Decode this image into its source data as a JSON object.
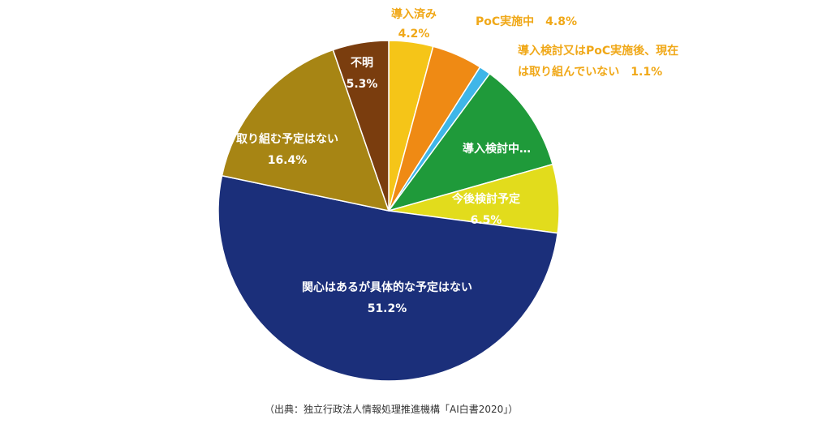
{
  "chart_data": {
    "type": "pie",
    "title": "",
    "start_angle_deg": 0,
    "direction": "clockwise",
    "slices": [
      {
        "name": "導入済み",
        "value": 4.2,
        "label": "4.2%",
        "color": "#f5c518",
        "label_position": "outside"
      },
      {
        "name": "PoC実施中",
        "value": 4.8,
        "label": "4.8%",
        "color": "#ef8a14",
        "label_position": "outside"
      },
      {
        "name": "導入検討又はPoC実施後、現在は取り組んでいない",
        "value": 1.1,
        "label": "1.1%",
        "color": "#3fb6e8",
        "label_position": "outside"
      },
      {
        "name": "導入検討中…",
        "value": 10.5,
        "label": "",
        "color": "#1f9a3a",
        "label_position": "inside"
      },
      {
        "name": "今後検討予定",
        "value": 6.5,
        "label": "6.5%",
        "color": "#e2dc1c",
        "label_position": "inside"
      },
      {
        "name": "関心はあるが具体的な予定はない",
        "value": 51.2,
        "label": "51.2%",
        "color": "#1b2f7a",
        "label_position": "inside"
      },
      {
        "name": "取り組む予定はない",
        "value": 16.4,
        "label": "16.4%",
        "color": "#a78514",
        "label_position": "inside"
      },
      {
        "name": "不明",
        "value": 5.3,
        "label": "5.3%",
        "color": "#7a3d0e",
        "label_position": "inside"
      }
    ]
  },
  "labels": {
    "s0_line1": "導入済み",
    "s0_line2": "4.2%",
    "s1_line1": "PoC実施中　4.8%",
    "s2_line1": "導入検討又はPoC実施後、現在",
    "s2_line2": "は取り組んでいない　1.1%",
    "s3_line1": "導入検討中…",
    "s4_line1": "今後検討予定",
    "s4_line2": "6.5%",
    "s5_line1": "関心はあるが具体的な予定はない",
    "s5_line2": "51.2%",
    "s6_line1": "取り組む予定はない",
    "s6_line2": "16.4%",
    "s7_line1": "不明",
    "s7_line2": "5.3%"
  },
  "source": "（出典：独立行政法人情報処理推進機構「AI白書2020」）"
}
